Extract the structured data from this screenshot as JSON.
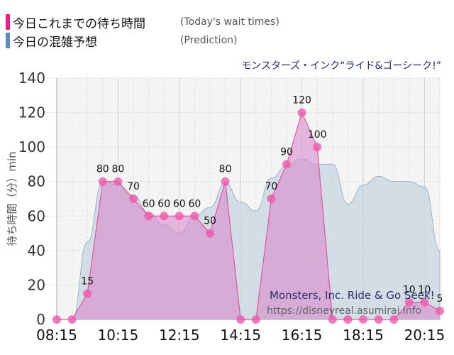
{
  "legend": {
    "today": {
      "label_jp": "今日これまでの待ち時間",
      "label_en": "(Today's wait times)",
      "color": "#ee1c8c"
    },
    "prediction": {
      "label_jp": "今日の混雑予想",
      "label_en": "(Prediction)",
      "color": "#5b8db8"
    }
  },
  "attraction_title": "モンスターズ・インク“ライド&ゴーシーク!”",
  "watermark": {
    "name": "Monsters, Inc. Ride & Go Seek!",
    "url": "https://disneyreal.asumirai.info"
  },
  "colors": {
    "today_fill": "#d98ccd",
    "today_line": "#e0559e",
    "today_marker": "#ee5aaa",
    "prediction_fill": "#c7d6e2",
    "prediction_line": "#9fb3c6",
    "plot_bg": "#f4f4f4"
  },
  "chart_data": {
    "type": "area",
    "title": "モンスターズ・インク“ライド&ゴーシーク!”",
    "xlabel": "",
    "ylabel": "待ち時間（分）min",
    "ylim": [
      0,
      140
    ],
    "yticks": [
      0,
      20,
      40,
      60,
      80,
      100,
      120,
      140
    ],
    "xtick_labels": [
      "08:15",
      "10:15",
      "12:15",
      "14:15",
      "16:15",
      "18:15",
      "20:15"
    ],
    "grid": true,
    "legend_position": "top-left",
    "x": [
      "08:15",
      "08:45",
      "09:15",
      "09:45",
      "10:15",
      "10:45",
      "11:15",
      "11:45",
      "12:15",
      "12:45",
      "13:15",
      "13:45",
      "14:15",
      "14:45",
      "15:15",
      "15:45",
      "16:15",
      "16:45",
      "17:15",
      "17:45",
      "18:15",
      "18:45",
      "19:15",
      "19:45",
      "20:15",
      "20:45"
    ],
    "series": [
      {
        "name": "今日これまでの待ち時間 (Today's wait times)",
        "values": [
          0,
          0,
          15,
          80,
          80,
          70,
          60,
          60,
          60,
          60,
          50,
          80,
          0,
          0,
          70,
          90,
          120,
          100,
          0,
          0,
          0,
          0,
          0,
          10,
          10,
          5
        ],
        "labels": [
          "",
          "",
          "15",
          "80",
          "80",
          "70",
          "60",
          "60",
          "60",
          "60",
          "50",
          "80",
          "",
          "",
          "70",
          "90",
          "120",
          "100",
          "",
          "",
          "",
          "",
          "",
          "10",
          "10",
          "5"
        ]
      },
      {
        "name": "今日の混雑予想 (Prediction)",
        "values": [
          0,
          0,
          45,
          80,
          78,
          72,
          62,
          55,
          50,
          60,
          65,
          79,
          68,
          63,
          82,
          89,
          93,
          90,
          90,
          67,
          78,
          83,
          80,
          80,
          77,
          40
        ]
      }
    ]
  }
}
